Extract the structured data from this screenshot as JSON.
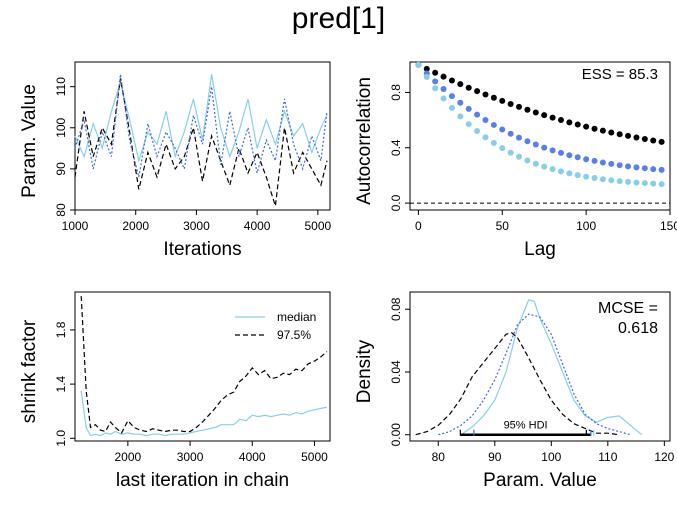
{
  "title": "pred[1]",
  "colors": {
    "chain1": "#87CEEB",
    "chain2": "#000000",
    "chain3": "#4169E1",
    "chain3_points": "#5A7FE6",
    "axis": "#000000"
  },
  "chart_data": [
    {
      "id": "trace",
      "type": "line",
      "xlabel": "Iterations",
      "ylabel": "Param. Value",
      "xlim": [
        1000,
        5200
      ],
      "ylim": [
        80,
        116
      ],
      "xticks": [
        1000,
        2000,
        3000,
        4000,
        5000
      ],
      "yticks": [
        80,
        90,
        100,
        110
      ],
      "series": [
        {
          "style": "solid",
          "color": "#87CEEB",
          "x": [
            1000,
            1150,
            1300,
            1450,
            1600,
            1750,
            1900,
            2050,
            2200,
            2350,
            2500,
            2650,
            2800,
            2950,
            3100,
            3250,
            3400,
            3550,
            3700,
            3850,
            4000,
            4150,
            4300,
            4450,
            4600,
            4750,
            4900,
            5050,
            5150
          ],
          "y": [
            98,
            93,
            101,
            95,
            104,
            111,
            102,
            92,
            99,
            96,
            104,
            93,
            99,
            107,
            97,
            113,
            100,
            93,
            99,
            107,
            95,
            102,
            96,
            104,
            98,
            101,
            94,
            100,
            103
          ]
        },
        {
          "style": "dashed",
          "color": "#000000",
          "x": [
            1000,
            1150,
            1300,
            1450,
            1600,
            1750,
            1900,
            2050,
            2200,
            2350,
            2500,
            2650,
            2800,
            2950,
            3100,
            3250,
            3400,
            3550,
            3700,
            3850,
            4000,
            4150,
            4300,
            4450,
            4600,
            4750,
            4900,
            5050,
            5150
          ],
          "y": [
            88,
            104,
            93,
            100,
            96,
            112,
            99,
            85,
            94,
            88,
            96,
            90,
            93,
            100,
            87,
            98,
            92,
            86,
            95,
            89,
            94,
            88,
            81,
            100,
            89,
            94,
            90,
            86,
            92
          ]
        },
        {
          "style": "dotted",
          "color": "#4169E1",
          "x": [
            1000,
            1150,
            1300,
            1450,
            1600,
            1750,
            1900,
            2050,
            2200,
            2350,
            2500,
            2650,
            2800,
            2950,
            3100,
            3250,
            3400,
            3550,
            3700,
            3850,
            4000,
            4150,
            4300,
            4450,
            4600,
            4750,
            4900,
            5050,
            5150
          ],
          "y": [
            95,
            102,
            90,
            99,
            93,
            113,
            97,
            88,
            101,
            93,
            99,
            95,
            90,
            103,
            96,
            110,
            91,
            104,
            93,
            100,
            89,
            97,
            92,
            107,
            96,
            90,
            98,
            92,
            104
          ]
        }
      ]
    },
    {
      "id": "autocorr",
      "type": "scatter",
      "xlabel": "Lag",
      "ylabel": "Autocorrelation",
      "annotation": "ESS = 85.3",
      "xlim": [
        -5,
        150
      ],
      "ylim": [
        -0.05,
        1.02
      ],
      "xticks": [
        0,
        50,
        100,
        150
      ],
      "yticks": [
        0.0,
        0.4,
        0.8
      ],
      "ytick_labels": [
        "0.0",
        "0.4",
        "0.8"
      ],
      "lags": [
        0,
        5,
        10,
        15,
        20,
        25,
        30,
        35,
        40,
        45,
        50,
        55,
        60,
        65,
        70,
        75,
        80,
        85,
        90,
        95,
        100,
        105,
        110,
        115,
        120,
        125,
        130,
        135,
        140,
        145
      ],
      "series": [
        {
          "color": "#000000",
          "rate": 0.0085,
          "floor": 0.3
        },
        {
          "color": "#5A7FE6",
          "rate": 0.016,
          "floor": 0.2
        },
        {
          "color": "#87CEEB",
          "rate": 0.021,
          "floor": 0.12
        }
      ]
    },
    {
      "id": "shrink",
      "type": "line",
      "xlabel": "last iteration in chain",
      "ylabel": "shrink factor",
      "xlim": [
        1150,
        5250
      ],
      "ylim": [
        0.98,
        2.08
      ],
      "xticks": [
        2000,
        3000,
        4000,
        5000
      ],
      "yticks": [
        1.0,
        1.4,
        1.8
      ],
      "ytick_labels": [
        "1.0",
        "1.4",
        "1.8"
      ],
      "legend": [
        "median",
        "97.5%"
      ],
      "legend_position": "top-right",
      "series": [
        {
          "name": "median",
          "style": "solid",
          "color": "#87CEEB",
          "x": [
            1250,
            1330,
            1400,
            1480,
            1560,
            1640,
            1720,
            1800,
            1900,
            2000,
            2100,
            2200,
            2300,
            2400,
            2500,
            2600,
            2700,
            2800,
            2900,
            3000,
            3100,
            3200,
            3300,
            3400,
            3500,
            3600,
            3700,
            3800,
            3900,
            4000,
            4100,
            4200,
            4300,
            4400,
            4500,
            4600,
            4700,
            4800,
            4900,
            5000,
            5100,
            5200
          ],
          "y": [
            1.35,
            1.08,
            1.02,
            1.03,
            1.02,
            1.04,
            1.03,
            1.05,
            1.03,
            1.04,
            1.03,
            1.03,
            1.02,
            1.03,
            1.03,
            1.02,
            1.03,
            1.03,
            1.03,
            1.04,
            1.05,
            1.06,
            1.07,
            1.08,
            1.1,
            1.1,
            1.1,
            1.14,
            1.13,
            1.17,
            1.16,
            1.17,
            1.16,
            1.17,
            1.18,
            1.17,
            1.19,
            1.18,
            1.2,
            1.21,
            1.22,
            1.23
          ]
        },
        {
          "name": "97.5%",
          "style": "dashed",
          "color": "#000000",
          "x": [
            1250,
            1330,
            1400,
            1480,
            1560,
            1640,
            1720,
            1800,
            1900,
            2000,
            2100,
            2200,
            2300,
            2400,
            2500,
            2600,
            2700,
            2800,
            2900,
            3000,
            3100,
            3200,
            3300,
            3400,
            3500,
            3600,
            3700,
            3800,
            3900,
            4000,
            4100,
            4200,
            4300,
            4400,
            4500,
            4600,
            4700,
            4800,
            4900,
            5000,
            5100,
            5200
          ],
          "y": [
            2.05,
            1.35,
            1.08,
            1.1,
            1.06,
            1.05,
            1.12,
            1.08,
            1.04,
            1.13,
            1.08,
            1.06,
            1.05,
            1.07,
            1.06,
            1.05,
            1.06,
            1.06,
            1.05,
            1.05,
            1.08,
            1.12,
            1.17,
            1.22,
            1.28,
            1.32,
            1.34,
            1.42,
            1.46,
            1.52,
            1.47,
            1.5,
            1.44,
            1.45,
            1.48,
            1.47,
            1.51,
            1.5,
            1.55,
            1.57,
            1.6,
            1.64
          ]
        }
      ]
    },
    {
      "id": "density",
      "type": "line",
      "xlabel": "Param. Value",
      "ylabel": "Density",
      "annotation_line1": "MCSE =",
      "annotation_line2": "0.618",
      "hdi_label": "95% HDI",
      "hdi": [
        83.9,
        107.0
      ],
      "xlim": [
        75,
        121
      ],
      "ylim": [
        -0.004,
        0.091
      ],
      "xticks": [
        80,
        90,
        100,
        110,
        120
      ],
      "yticks": [
        0.0,
        0.04,
        0.08
      ],
      "ytick_labels": [
        "0.00",
        "0.04",
        "0.08"
      ],
      "series": [
        {
          "style": "solid",
          "color": "#87CEEB",
          "x": [
            84,
            86,
            88,
            90,
            92,
            94,
            96,
            97,
            98,
            100,
            102,
            104,
            106,
            108,
            110,
            112,
            114,
            116
          ],
          "y": [
            0.0,
            0.005,
            0.012,
            0.022,
            0.04,
            0.068,
            0.086,
            0.085,
            0.074,
            0.058,
            0.04,
            0.022,
            0.012,
            0.008,
            0.011,
            0.012,
            0.006,
            0.0
          ]
        },
        {
          "style": "dashed",
          "color": "#000000",
          "x": [
            76,
            78,
            80,
            82,
            84,
            86,
            88,
            90,
            92,
            93,
            94,
            96,
            98,
            100,
            102,
            104,
            106,
            108,
            110,
            112
          ],
          "y": [
            0.0,
            0.002,
            0.006,
            0.013,
            0.023,
            0.037,
            0.046,
            0.055,
            0.064,
            0.065,
            0.062,
            0.049,
            0.035,
            0.022,
            0.013,
            0.007,
            0.004,
            0.001,
            0.001,
            0.0
          ]
        },
        {
          "style": "dotted",
          "color": "#4169E1",
          "x": [
            80,
            82,
            84,
            86,
            88,
            90,
            92,
            94,
            96,
            98,
            100,
            102,
            104,
            106,
            108,
            110,
            112,
            114
          ],
          "y": [
            0.0,
            0.002,
            0.006,
            0.012,
            0.022,
            0.035,
            0.052,
            0.07,
            0.077,
            0.075,
            0.064,
            0.045,
            0.026,
            0.013,
            0.007,
            0.004,
            0.002,
            0.0
          ]
        }
      ]
    }
  ]
}
